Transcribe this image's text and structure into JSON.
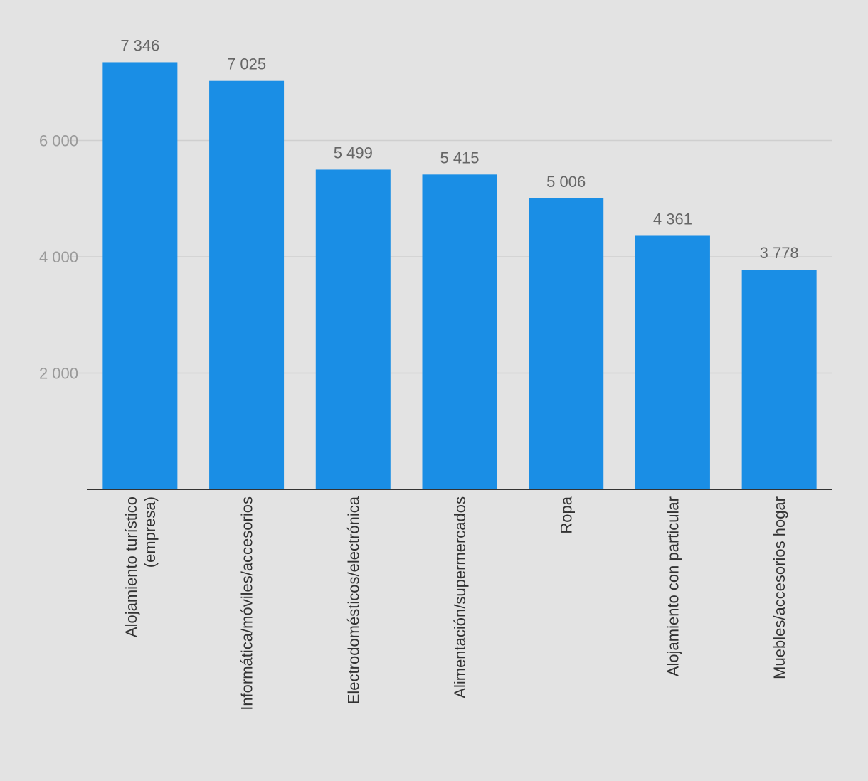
{
  "chart_data": {
    "type": "bar",
    "title": "",
    "xlabel": "",
    "ylabel": "",
    "ylim": [
      0,
      8000
    ],
    "yticks": [
      2000,
      4000,
      6000
    ],
    "ytick_labels": [
      "2 000",
      "4 000",
      "6 000"
    ],
    "grid": true,
    "bar_color": "#1a8ee5",
    "categories": [
      [
        "Alojamiento turístico",
        "(empresa)"
      ],
      [
        "Informática/móviles/accesorios"
      ],
      [
        "Electrodomésticos/electrónica"
      ],
      [
        "Alimentación/supermercados"
      ],
      [
        "Ropa"
      ],
      [
        "Alojamiento con particular"
      ],
      [
        "Muebles/accesorios hogar"
      ]
    ],
    "values": [
      7346,
      7025,
      5499,
      5415,
      5006,
      4361,
      3778
    ],
    "value_labels": [
      "7 346",
      "7 025",
      "5 499",
      "5 415",
      "5 006",
      "4 361",
      "3 778"
    ]
  }
}
